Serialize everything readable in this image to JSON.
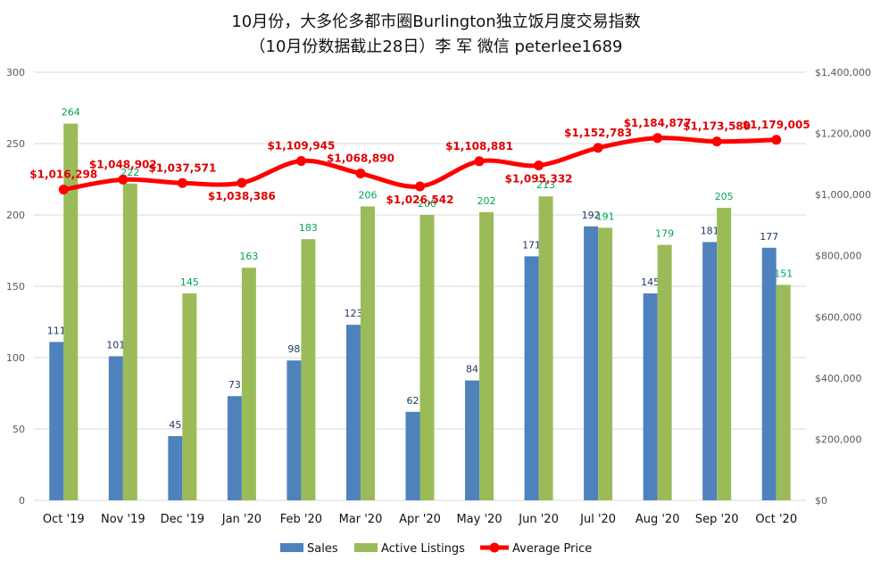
{
  "chart_data": {
    "type": "bar",
    "title": "10月份，大多伦多都市圈Burlington独立饭月度交易指数",
    "subtitle": "（10月份数据截止28日）李 军  微信  peterlee1689",
    "categories": [
      "Oct '19",
      "Nov '19",
      "Dec '19",
      "Jan '20",
      "Feb '20",
      "Mar '20",
      "Apr '20",
      "May '20",
      "Jun '20",
      "Jul '20",
      "Aug '20",
      "Sep '20",
      "Oct '20"
    ],
    "series": [
      {
        "name": "Sales",
        "axis": "left",
        "type": "bar",
        "color": "#4f81bd",
        "label_color": "#1f3864",
        "values": [
          111,
          101,
          45,
          73,
          98,
          123,
          62,
          84,
          171,
          192,
          145,
          181,
          177
        ]
      },
      {
        "name": "Active Listings",
        "axis": "left",
        "type": "bar",
        "color": "#9bbb59",
        "label_color": "#00a651",
        "values": [
          264,
          222,
          145,
          163,
          183,
          206,
          200,
          202,
          213,
          191,
          179,
          205,
          151
        ]
      },
      {
        "name": "Average Price",
        "axis": "right",
        "type": "line",
        "color": "#ff0000",
        "label_color": "#e00000",
        "values": [
          1016298,
          1048902,
          1037571,
          1038386,
          1109945,
          1068890,
          1026542,
          1108881,
          1095332,
          1152783,
          1184877,
          1173580,
          1179005
        ],
        "labels": [
          "$1,016,298",
          "$1,048,902",
          "$1,037,571",
          "$1,038,386",
          "$1,109,945",
          "$1,068,890",
          "$1,026,542",
          "$1,108,881",
          "$1,095,332",
          "$1,152,783",
          "$1,184,877",
          "$1,173,580",
          "$1,179,005"
        ]
      }
    ],
    "ylim_left": [
      0,
      300
    ],
    "yticks_left": [
      "0",
      "50",
      "100",
      "150",
      "200",
      "250",
      "300"
    ],
    "ylim_right": [
      0,
      1400000
    ],
    "yticks_right": [
      "$0",
      "$200,000",
      "$400,000",
      "$600,000",
      "$800,000",
      "$1,000,000",
      "$1,200,000",
      "$1,400,000"
    ],
    "grid": true,
    "legend": "bottom"
  }
}
